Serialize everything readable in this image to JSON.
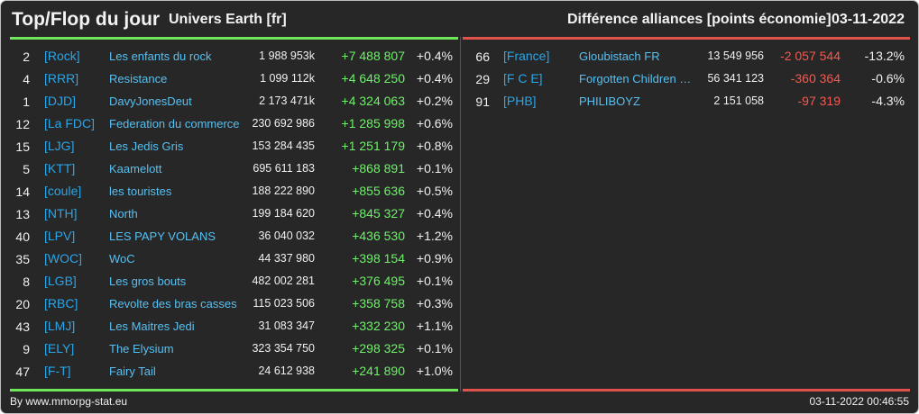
{
  "header": {
    "title": "Top/Flop du jour",
    "subtitle": "Univers Earth [fr]",
    "right_title": "Différence alliances [points économie]",
    "date": "03-11-2022"
  },
  "colors": {
    "background": "#272727",
    "top_accent": "#6ee85a",
    "flop_accent": "#e0524a",
    "tag": "#2aa5e8",
    "name": "#56c0f2",
    "positive": "#6ff06a",
    "negative": "#f25a50"
  },
  "top": [
    {
      "rank": "2",
      "tag": "[Rock]",
      "name": "Les enfants du rock",
      "points": "1 988 953k",
      "diff": "+7 488 807",
      "pct": "+0.4%"
    },
    {
      "rank": "4",
      "tag": "[RRR]",
      "name": "Resistance",
      "points": "1 099 112k",
      "diff": "+4 648 250",
      "pct": "+0.4%"
    },
    {
      "rank": "1",
      "tag": "[DJD]",
      "name": "DavyJonesDeut",
      "points": "2 173 471k",
      "diff": "+4 324 063",
      "pct": "+0.2%"
    },
    {
      "rank": "12",
      "tag": "[La FDC]",
      "name": "Federation du commerce",
      "points": "230 692 986",
      "diff": "+1 285 998",
      "pct": "+0.6%"
    },
    {
      "rank": "15",
      "tag": "[LJG]",
      "name": "Les Jedis Gris",
      "points": "153 284 435",
      "diff": "+1 251 179",
      "pct": "+0.8%"
    },
    {
      "rank": "5",
      "tag": "[KTT]",
      "name": "Kaamelott",
      "points": "695 611 183",
      "diff": "+868 891",
      "pct": "+0.1%"
    },
    {
      "rank": "14",
      "tag": "[coule]",
      "name": "les touristes",
      "points": "188 222 890",
      "diff": "+855 636",
      "pct": "+0.5%"
    },
    {
      "rank": "13",
      "tag": "[NTH]",
      "name": "North",
      "points": "199 184 620",
      "diff": "+845 327",
      "pct": "+0.4%"
    },
    {
      "rank": "40",
      "tag": "[LPV]",
      "name": "LES PAPY VOLANS",
      "points": "36 040 032",
      "diff": "+436 530",
      "pct": "+1.2%"
    },
    {
      "rank": "35",
      "tag": "[WOC]",
      "name": "WoC",
      "points": "44 337 980",
      "diff": "+398 154",
      "pct": "+0.9%"
    },
    {
      "rank": "8",
      "tag": "[LGB]",
      "name": "Les gros bouts",
      "points": "482 002 281",
      "diff": "+376 495",
      "pct": "+0.1%"
    },
    {
      "rank": "20",
      "tag": "[RBC]",
      "name": "Revolte des bras casses",
      "points": "115 023 506",
      "diff": "+358 758",
      "pct": "+0.3%"
    },
    {
      "rank": "43",
      "tag": "[LMJ]",
      "name": "Les Maitres Jedi",
      "points": "31 083 347",
      "diff": "+332 230",
      "pct": "+1.1%"
    },
    {
      "rank": "9",
      "tag": "[ELY]",
      "name": "The Elysium",
      "points": "323 354 750",
      "diff": "+298 325",
      "pct": "+0.1%"
    },
    {
      "rank": "47",
      "tag": "[F-T]",
      "name": "Fairy Tail",
      "points": "24 612 938",
      "diff": "+241 890",
      "pct": "+1.0%"
    }
  ],
  "flop": [
    {
      "rank": "66",
      "tag": "[France]",
      "name": "Gloubistach FR",
      "points": "13 549 956",
      "diff": "-2 057 544",
      "pct": "-13.2%"
    },
    {
      "rank": "29",
      "tag": "[F C E]",
      "name": "Forgotten Children of Earth",
      "points": "56 341 123",
      "diff": "-360 364",
      "pct": "-0.6%"
    },
    {
      "rank": "91",
      "tag": "[PHB]",
      "name": "PHILIBOYZ",
      "points": "2 151 058",
      "diff": "-97 319",
      "pct": "-4.3%"
    }
  ],
  "footer": {
    "credit": "By www.mmorpg-stat.eu",
    "timestamp": "03-11-2022 00:46:55"
  }
}
